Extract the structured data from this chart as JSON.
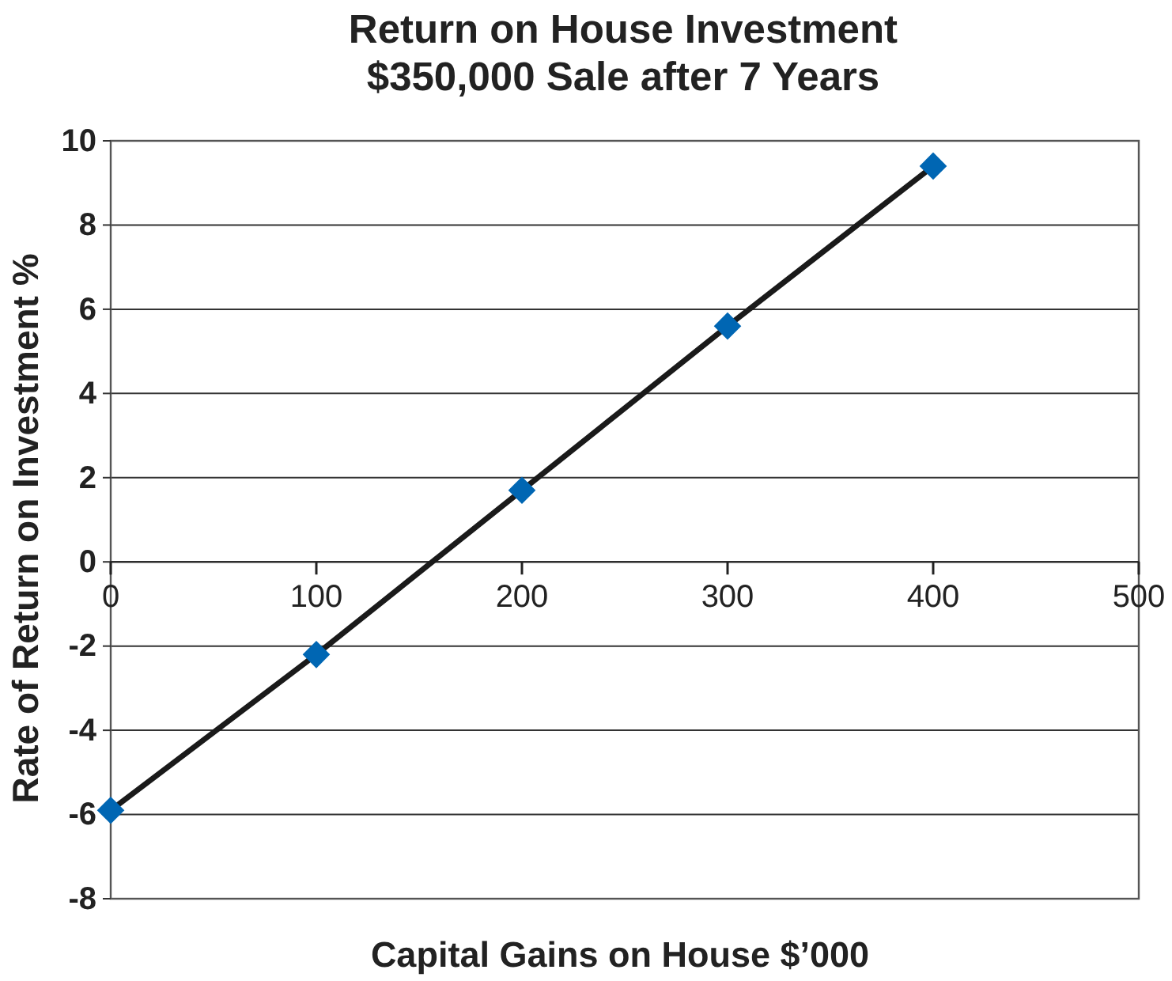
{
  "chart_data": {
    "type": "line",
    "title": "Return on House Investment",
    "subtitle": "$350,000 Sale after 7 Years",
    "xlabel": "Capital Gains on House $’000",
    "ylabel": "Rate of Return on Investment %",
    "x": [
      0,
      100,
      200,
      300,
      400
    ],
    "series": [
      {
        "color": "#1a1a1a",
        "values": [
          -5.9,
          -2.2,
          1.7,
          5.6,
          9.4
        ]
      },
      {
        "type": "scatter",
        "color": "#0066b3",
        "marker": "diamond",
        "values": [
          -5.9,
          -2.2,
          1.7,
          5.6,
          9.4
        ]
      }
    ],
    "xlim": [
      0,
      500
    ],
    "xticks": [
      0,
      100,
      200,
      300,
      400,
      500
    ],
    "ylim": [
      -8,
      10
    ],
    "yticks": [
      -8,
      -6,
      -4,
      -2,
      0,
      2,
      4,
      6,
      8,
      10
    ],
    "grid": "y"
  }
}
